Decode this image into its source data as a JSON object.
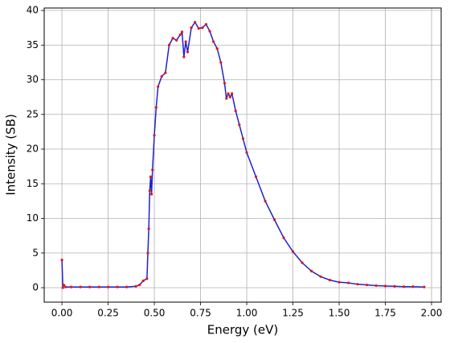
{
  "chart_data": {
    "type": "line",
    "x_label": "Energy (eV)",
    "y_label": "Intensity (SB)",
    "x": [
      0.0,
      0.005,
      0.01,
      0.02,
      0.05,
      0.1,
      0.15,
      0.2,
      0.25,
      0.3,
      0.35,
      0.4,
      0.42,
      0.44,
      0.46,
      0.465,
      0.47,
      0.475,
      0.48,
      0.485,
      0.49,
      0.5,
      0.51,
      0.52,
      0.54,
      0.56,
      0.58,
      0.6,
      0.62,
      0.64,
      0.65,
      0.66,
      0.67,
      0.68,
      0.7,
      0.72,
      0.74,
      0.76,
      0.78,
      0.8,
      0.82,
      0.84,
      0.86,
      0.88,
      0.89,
      0.9,
      0.91,
      0.92,
      0.94,
      0.96,
      0.98,
      1.0,
      1.05,
      1.1,
      1.15,
      1.2,
      1.25,
      1.3,
      1.35,
      1.4,
      1.45,
      1.5,
      1.55,
      1.6,
      1.65,
      1.7,
      1.75,
      1.8,
      1.85,
      1.9,
      1.96
    ],
    "series": [
      {
        "color": "#2020d0",
        "marker_color": "#e01515",
        "values": [
          4.0,
          0.0,
          0.4,
          0.1,
          0.1,
          0.1,
          0.1,
          0.1,
          0.1,
          0.1,
          0.1,
          0.2,
          0.4,
          1.0,
          1.3,
          5.0,
          8.5,
          14.0,
          16.0,
          13.5,
          17.0,
          22.0,
          26.0,
          29.0,
          30.5,
          31.0,
          35.0,
          36.0,
          35.7,
          36.5,
          36.9,
          33.3,
          35.5,
          34.0,
          37.5,
          38.3,
          37.4,
          37.5,
          38.0,
          37.0,
          35.5,
          34.5,
          32.5,
          29.5,
          27.3,
          28.0,
          27.5,
          28.0,
          25.5,
          23.5,
          21.5,
          19.5,
          16.0,
          12.5,
          9.8,
          7.2,
          5.2,
          3.6,
          2.4,
          1.6,
          1.1,
          0.8,
          0.7,
          0.5,
          0.4,
          0.3,
          0.25,
          0.2,
          0.15,
          0.15,
          0.1
        ]
      }
    ],
    "xlim": [
      -0.096,
      2.052
    ],
    "ylim": [
      -2.08,
      40.35
    ],
    "xticks": [
      {
        "value": 0,
        "label": "0.00"
      },
      {
        "value": 0.25,
        "label": "0.25"
      },
      {
        "value": 0.5,
        "label": "0.50"
      },
      {
        "value": 0.75,
        "label": "0.75"
      },
      {
        "value": 1,
        "label": "1.00"
      },
      {
        "value": 1.25,
        "label": "1.25"
      },
      {
        "value": 1.5,
        "label": "1.50"
      },
      {
        "value": 1.75,
        "label": "1.75"
      },
      {
        "value": 2,
        "label": "2.00"
      }
    ],
    "yticks": [
      0,
      5,
      10,
      15,
      20,
      25,
      30,
      35,
      40
    ],
    "grid": true
  }
}
